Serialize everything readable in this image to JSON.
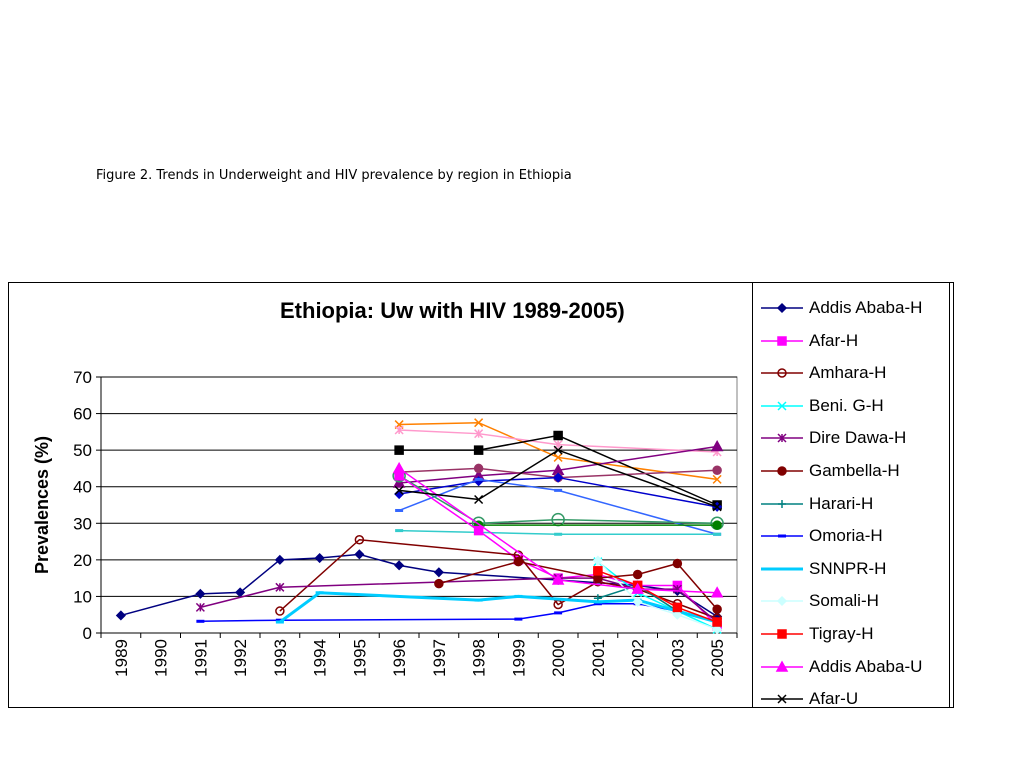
{
  "caption": "Figure 2. Trends in Underweight and HIV prevalence by region in Ethiopia",
  "chart_data": {
    "type": "line",
    "title": "Ethiopia: Uw with HIV 1989-2005)",
    "xlabel": "",
    "ylabel": "Prevalences (%)",
    "ylim": [
      0,
      70
    ],
    "yticks": [
      "0",
      "10",
      "20",
      "30",
      "40",
      "50",
      "60",
      "70"
    ],
    "categories": [
      "1989",
      "1990",
      "1991",
      "1992",
      "1993",
      "1994",
      "1995",
      "1996",
      "1997",
      "1998",
      "1999",
      "2000",
      "2001",
      "2002",
      "2003",
      "2005"
    ],
    "grid": true,
    "legend_position": "right",
    "series": [
      {
        "name": "Addis Ababa-H",
        "color": "#000080",
        "marker": "diamond",
        "x": [
          "1989",
          "1991",
          "1992",
          "1993",
          "1994",
          "1995",
          "1996",
          "1997",
          "2000",
          "2002",
          "2003",
          "2005"
        ],
        "values": [
          4.8,
          10.7,
          11.1,
          20.0,
          20.5,
          21.5,
          18.5,
          16.6,
          14.5,
          13.0,
          11.5,
          4.5
        ]
      },
      {
        "name": "Afar-H",
        "color": "#ff00ff",
        "marker": "square",
        "x": [
          "1996",
          "1998",
          "1999",
          "2000",
          "2001",
          "2002",
          "2003",
          "2005"
        ],
        "values": [
          43,
          28,
          20,
          15,
          16,
          13,
          13,
          2
        ]
      },
      {
        "name": "Amhara-H",
        "color": "#800000",
        "marker": "circle-open",
        "x": [
          "1993",
          "1995",
          "1999",
          "2000",
          "2001",
          "2002",
          "2003",
          "2005"
        ],
        "values": [
          6,
          25.5,
          21.3,
          7.8,
          14,
          12,
          8,
          4
        ]
      },
      {
        "name": "Beni. G-H",
        "color": "#00ffff",
        "marker": "x",
        "x": [
          "2001",
          "2002",
          "2003",
          "2005"
        ],
        "values": [
          19.5,
          11,
          6,
          1
        ]
      },
      {
        "name": "Dire Dawa-H",
        "color": "#800080",
        "marker": "star",
        "x": [
          "1991",
          "1993",
          "2000",
          "2001",
          "2002",
          "2003",
          "2005"
        ],
        "values": [
          7,
          12.5,
          15,
          15,
          12,
          12,
          3
        ]
      },
      {
        "name": "Gambella-H",
        "color": "#800000",
        "marker": "circle",
        "x": [
          "1997",
          "1999",
          "2001",
          "2002",
          "2003",
          "2005"
        ],
        "values": [
          13.5,
          19.5,
          15,
          16,
          19,
          6.5
        ]
      },
      {
        "name": "Harari-H",
        "color": "#008080",
        "marker": "plus",
        "x": [
          "2001",
          "2002",
          "2003",
          "2005"
        ],
        "values": [
          9.5,
          13,
          6,
          3
        ]
      },
      {
        "name": "Omoria-H",
        "color": "#0000ff",
        "marker": "dash",
        "x": [
          "1991",
          "1993",
          "1999",
          "2000",
          "2001",
          "2002",
          "2003",
          "2005"
        ],
        "values": [
          3.2,
          3.5,
          3.8,
          5.5,
          8,
          8,
          6,
          3
        ]
      },
      {
        "name": "SNNPR-H",
        "color": "#00ccff",
        "marker": "dash",
        "x": [
          "1993",
          "1994",
          "1998",
          "1999",
          "2001",
          "2002",
          "2003",
          "2005"
        ],
        "values": [
          3,
          11,
          9,
          10,
          8.5,
          9,
          6,
          3
        ]
      },
      {
        "name": "Somali-H",
        "color": "#ccffff",
        "marker": "diamond",
        "x": [
          "2001",
          "2002",
          "2003",
          "2005"
        ],
        "values": [
          19.8,
          8.5,
          5,
          1
        ]
      },
      {
        "name": "Tigray-H",
        "color": "#ff0000",
        "marker": "square",
        "x": [
          "2001",
          "2002",
          "2003",
          "2005"
        ],
        "values": [
          17,
          13,
          7,
          3
        ]
      },
      {
        "name": "Addis Ababa-U",
        "color": "#ff00ff",
        "marker": "triangle",
        "x": [
          "1996",
          "2000",
          "2002",
          "2005"
        ],
        "values": [
          45,
          14.5,
          12,
          11
        ]
      },
      {
        "name": "Afar-U",
        "color": "#000000",
        "marker": "x",
        "x": [
          "1996",
          "1998",
          "2000",
          "2005"
        ],
        "values": [
          39,
          36.5,
          50,
          34.5
        ]
      }
    ],
    "extra_series_not_in_legend": [
      {
        "color": "#ff8000",
        "marker": "x",
        "x": [
          "1996",
          "1998",
          "2000",
          "2005"
        ],
        "values": [
          57,
          57.5,
          48,
          42
        ]
      },
      {
        "color": "#ff99cc",
        "marker": "star",
        "x": [
          "1996",
          "1998",
          "2000",
          "2005"
        ],
        "values": [
          55.5,
          54.5,
          51.5,
          49.5
        ]
      },
      {
        "color": "#000000",
        "marker": "square",
        "x": [
          "1996",
          "1998",
          "2000",
          "2005"
        ],
        "values": [
          50,
          50,
          54,
          35
        ]
      },
      {
        "color": "#800080",
        "marker": "triangle",
        "x": [
          "1996",
          "1998",
          "2000",
          "2005"
        ],
        "values": [
          41,
          43,
          44.5,
          51
        ]
      },
      {
        "color": "#993366",
        "marker": "circle",
        "x": [
          "1996",
          "1998",
          "2000",
          "2005"
        ],
        "values": [
          44,
          45,
          42.5,
          44.5
        ]
      },
      {
        "color": "#0000cc",
        "marker": "diamond",
        "x": [
          "1996",
          "1998",
          "2000",
          "2005"
        ],
        "values": [
          38,
          41.5,
          42.5,
          34.5
        ]
      },
      {
        "color": "#3366ff",
        "marker": "dash",
        "x": [
          "1996",
          "1998",
          "2000",
          "2005"
        ],
        "values": [
          33.5,
          42,
          39,
          27
        ]
      },
      {
        "color": "#339966",
        "marker": "circle-open",
        "x": [
          "1996",
          "1998",
          "2000",
          "2005"
        ],
        "values": [
          43,
          30,
          31,
          30
        ]
      },
      {
        "color": "#33cccc",
        "marker": "dash",
        "x": [
          "1996",
          "1998",
          "2000",
          "2005"
        ],
        "values": [
          28,
          27.5,
          27,
          27
        ]
      },
      {
        "color": "#008000",
        "marker": "circle",
        "x": [
          "1998",
          "2005"
        ],
        "values": [
          29.5,
          29.5
        ]
      }
    ]
  }
}
